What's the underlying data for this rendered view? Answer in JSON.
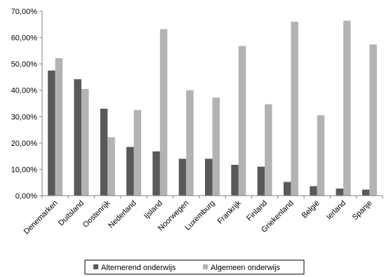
{
  "chart_data": {
    "type": "bar",
    "categories": [
      "Denemarken",
      "Duitsland",
      "Oostenrijk",
      "Nederland",
      "Ijsland",
      "Noorwegen",
      "Luxemburg",
      "Frankrijk",
      "Finland",
      "Griekenland",
      "België",
      "Ierland",
      "Spanje"
    ],
    "series": [
      {
        "name": "Alternerend onderwijs",
        "color": "#595959",
        "values": [
          47.5,
          44.2,
          33.0,
          18.5,
          16.8,
          14.0,
          14.0,
          11.7,
          11.0,
          5.2,
          3.6,
          2.7,
          2.3
        ]
      },
      {
        "name": "Algemeen onderwijs",
        "color": "#b3b3b3",
        "values": [
          52.2,
          40.5,
          22.2,
          32.5,
          63.2,
          40.0,
          37.2,
          56.8,
          34.7,
          66.0,
          30.5,
          66.4,
          57.4
        ]
      }
    ],
    "ylim": [
      0,
      70
    ],
    "yticks": [
      "0,00%",
      "10,00%",
      "20,00%",
      "30,00%",
      "40,00%",
      "50,00%",
      "60,00%",
      "70,00%"
    ],
    "legend": "bottom",
    "grid": false
  }
}
